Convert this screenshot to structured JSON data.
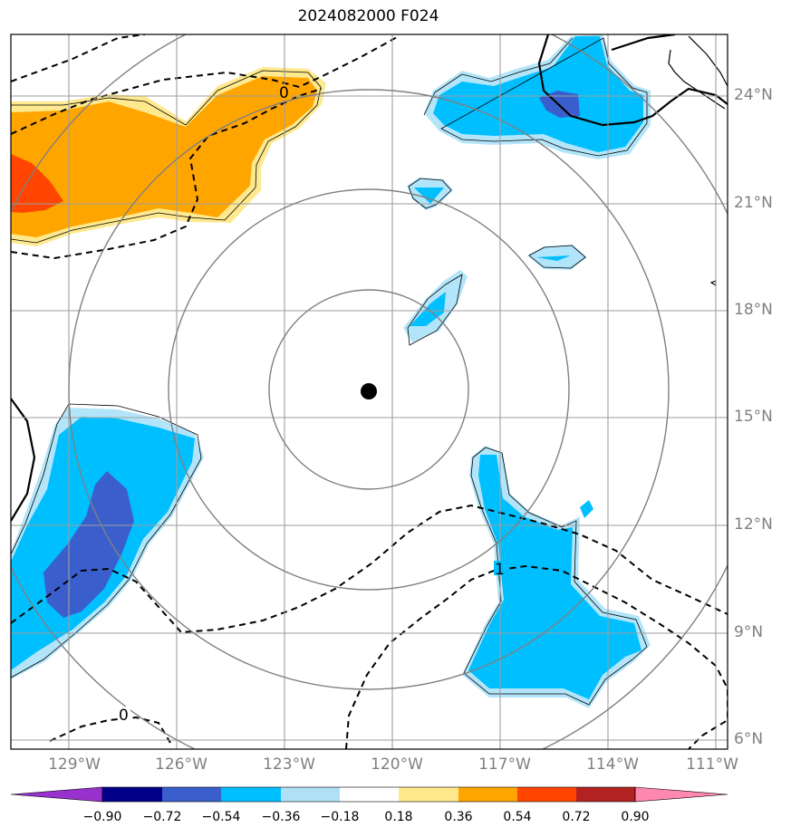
{
  "title": "2024082000 F024",
  "map": {
    "lon_range": [
      -130,
      -110.5
    ],
    "lat_range": [
      5.8,
      25.8
    ],
    "center": {
      "lon": -120.0,
      "lat": 15.7
    },
    "range_rings_deg": [
      3,
      6,
      9,
      12
    ],
    "lat_labels": [
      "24°N",
      "21°N",
      "18°N",
      "15°N",
      "12°N",
      "9°N",
      "6°N"
    ],
    "lon_labels": [
      "129°W",
      "126°W",
      "123°W",
      "120°W",
      "117°W",
      "114°W",
      "111°W"
    ],
    "contour_labels": [
      "0",
      "1",
      "0"
    ],
    "gridline_color": "#808080"
  },
  "colorbar": {
    "ticks": [
      "−0.90",
      "−0.72",
      "−0.54",
      "−0.36",
      "−0.18",
      "0.18",
      "0.36",
      "0.54",
      "0.72",
      "0.90"
    ],
    "colors": [
      "#9932cc",
      "#00008b",
      "#3a5fcd",
      "#00bfff",
      "#b0e0f6",
      "#ffffff",
      "#ffe88c",
      "#ffa500",
      "#ff4500",
      "#b22222",
      "#ff88b0"
    ],
    "neg_colors": {
      "light": "#b3e5fa",
      "mid": "#00bfff",
      "dark": "#3a5fcd"
    },
    "pos_colors": {
      "light": "#ffe98f",
      "mid": "#ffa500",
      "dark": "#ff4500"
    }
  }
}
